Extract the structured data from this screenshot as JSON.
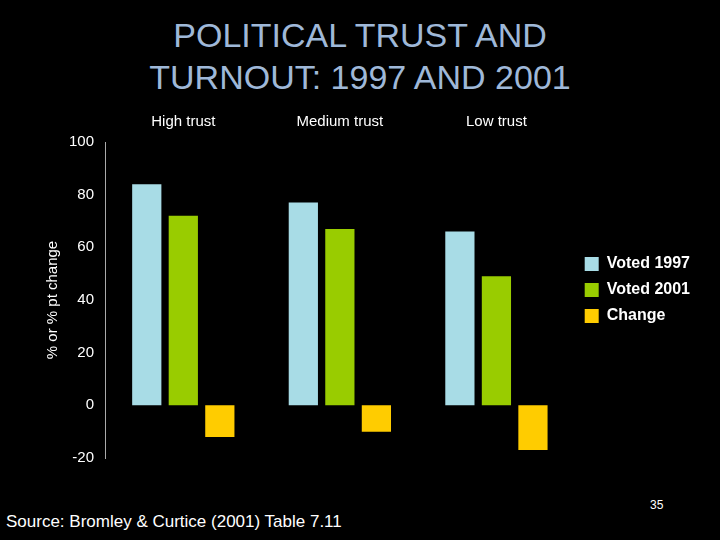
{
  "chart_data": {
    "type": "bar",
    "title": "POLITICAL TRUST AND\nTURNOUT: 1997 AND 2001",
    "y_label": "% or % pt change",
    "categories": [
      "High trust",
      "Medium trust",
      "Low trust"
    ],
    "series": [
      {
        "name": "Voted 1997",
        "color": "#a8dce6",
        "values": [
          84,
          77,
          66
        ]
      },
      {
        "name": "Voted 2001",
        "color": "#99cc00",
        "values": [
          72,
          67,
          49
        ]
      },
      {
        "name": "Change",
        "color": "#ffcc00",
        "values": [
          -12,
          -10,
          -17
        ]
      }
    ],
    "ylim": [
      -20,
      100
    ],
    "yticks": [
      -20,
      0,
      20,
      40,
      60,
      80,
      100
    ],
    "grid": false,
    "legend": "right",
    "footer": "Source: Bromley & Curtice (2001) Table 7.11",
    "page_number": "35"
  }
}
